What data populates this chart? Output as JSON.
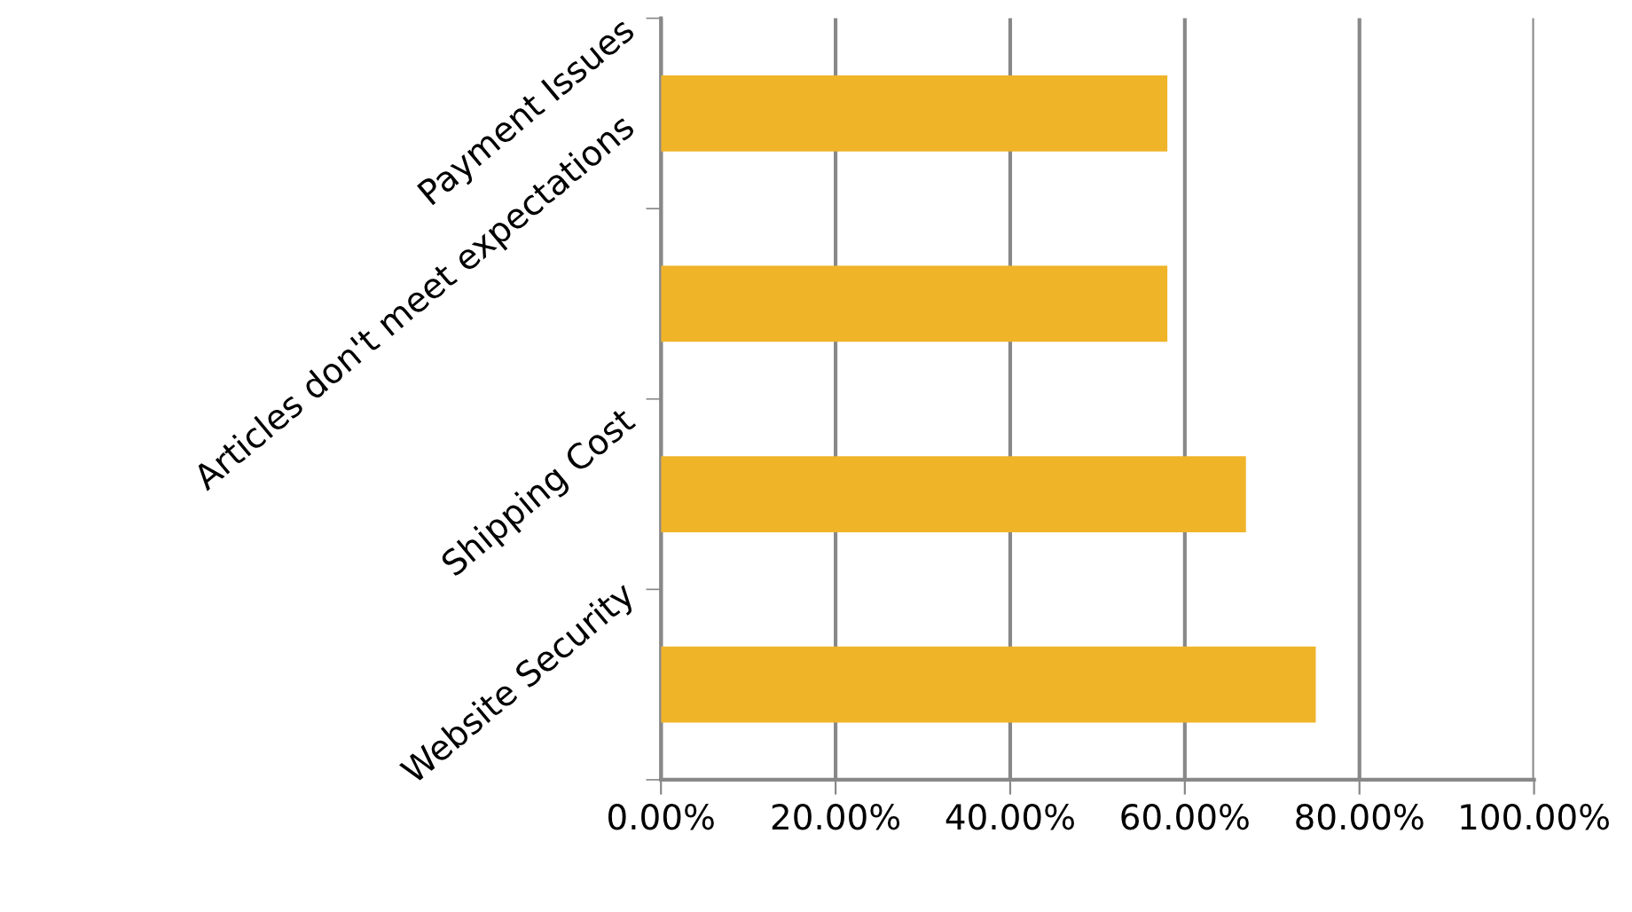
{
  "chart_data": {
    "type": "bar",
    "orientation": "horizontal",
    "categories": [
      "Payment Issues",
      "Articles don't meet expectations",
      "Shipping Cost",
      "Website Security"
    ],
    "values": [
      58,
      58,
      67,
      75
    ],
    "color": "#f0b429",
    "xlim": [
      0,
      100
    ],
    "xticks": [
      {
        "value": 0,
        "label": "0.00%"
      },
      {
        "value": 20,
        "label": "20.00%"
      },
      {
        "value": 40,
        "label": "40.00%"
      },
      {
        "value": 60,
        "label": "60.00%"
      },
      {
        "value": 80,
        "label": "80.00%"
      },
      {
        "value": 100,
        "label": "100.00%"
      }
    ],
    "grid": "x"
  }
}
